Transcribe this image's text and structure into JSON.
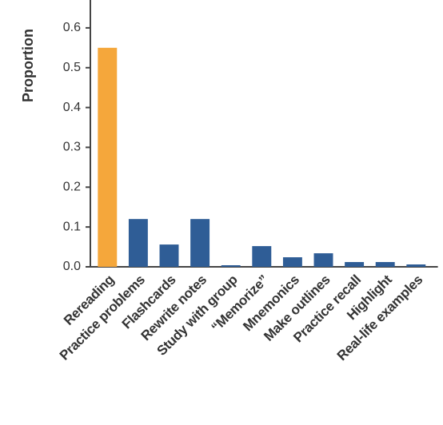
{
  "chart_data": {
    "type": "bar",
    "y_label": "Proportion",
    "categories": [
      "Rereading",
      "Practice problems",
      "Flashcards",
      "Rewrite notes",
      "Study with group",
      "“Memorize”",
      "Mnemonics",
      "Make outlines",
      "Practice recall",
      "Highlight",
      "Real-life examples"
    ],
    "values": [
      0.55,
      0.12,
      0.056,
      0.12,
      0.004,
      0.052,
      0.024,
      0.034,
      0.012,
      0.012,
      0.006
    ],
    "colors": [
      "#f5a73b",
      "#2f5d96",
      "#2f5d96",
      "#2f5d96",
      "#2f5d96",
      "#2f5d96",
      "#2f5d96",
      "#2f5d96",
      "#2f5d96",
      "#2f5d96",
      "#2f5d96"
    ],
    "ylim": [
      0,
      0.67
    ],
    "yticks": [
      {
        "value": 0,
        "label": "0.0"
      },
      0.1,
      0.2,
      0.3,
      0.4,
      0.5,
      0.6
    ],
    "grid": false
  }
}
